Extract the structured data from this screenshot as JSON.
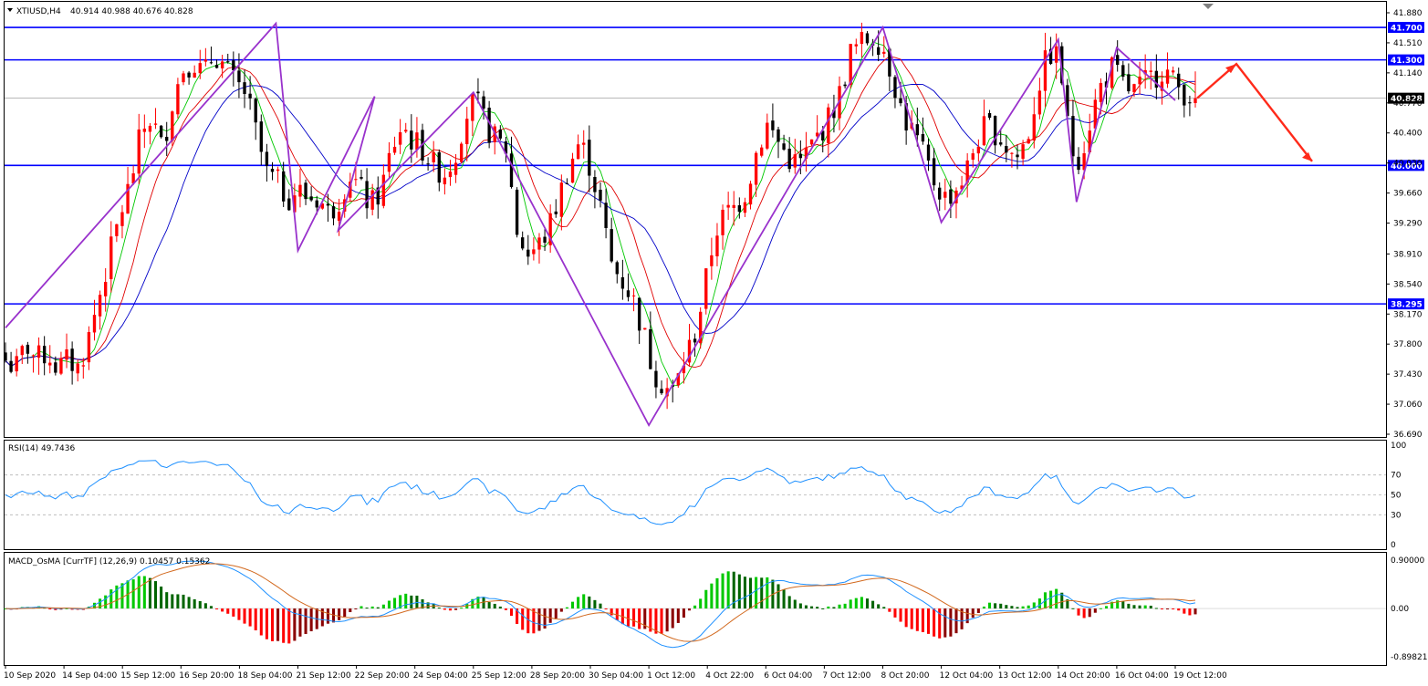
{
  "header": {
    "symbol": "XTIUSD,H4",
    "ohlc": "40.914 40.988 40.676 40.828",
    "rsi_title": "RSI(14) 49.7436",
    "macd_title": "MACD_OsMA [CurrTF] (12,26,9) 0.10457 0.15362"
  },
  "colors": {
    "bull": "#ff0000",
    "bear": "#000000",
    "ma_fast": "#00c800",
    "ma_mid": "#e00000",
    "ma_slow": "#0000c8",
    "zigzag": "#9932cc",
    "level": "#0000ff",
    "rsi": "#1e90ff",
    "macd_line": "#1e90ff",
    "signal_line": "#d2691e",
    "hist_up_strong": "#00c800",
    "hist_up_weak": "#006400",
    "hist_down_strong": "#ff0000",
    "hist_down_weak": "#8b0000",
    "arrow": "#ff2a1a"
  },
  "chart_data": [
    {
      "type": "candlestick",
      "symbol": "XTIUSD",
      "timeframe": "H4",
      "ylim": [
        36.69,
        41.88
      ],
      "y_ticks": [
        "41.880",
        "41.510",
        "41.140",
        "40.770",
        "40.400",
        "40.030",
        "39.660",
        "39.290",
        "38.910",
        "38.540",
        "38.170",
        "37.800",
        "37.430",
        "37.060",
        "36.690"
      ],
      "x_ticks": [
        "10 Sep 2020",
        "14 Sep 04:00",
        "15 Sep 12:00",
        "16 Sep 20:00",
        "18 Sep 04:00",
        "21 Sep 12:00",
        "22 Sep 20:00",
        "24 Sep 04:00",
        "25 Sep 12:00",
        "28 Sep 20:00",
        "30 Sep 04:00",
        "1 Oct 12:00",
        "4 Oct 22:00",
        "6 Oct 04:00",
        "7 Oct 12:00",
        "8 Oct 20:00",
        "12 Oct 04:00",
        "13 Oct 12:00",
        "14 Oct 20:00",
        "16 Oct 04:00",
        "19 Oct 12:00"
      ],
      "levels": [
        {
          "value": 41.7,
          "label": "41.700"
        },
        {
          "value": 41.3,
          "label": "41.300"
        },
        {
          "value": 40.0,
          "label": "40.000"
        },
        {
          "value": 38.295,
          "label": "38.295"
        }
      ],
      "current_price": {
        "value": 40.828,
        "label": "40.828"
      },
      "close_path": [
        37.6,
        37.5,
        37.8,
        37.6,
        37.7,
        37.5,
        37.6,
        37.5,
        37.9,
        38.4,
        38.9,
        39.4,
        39.8,
        40.4,
        40.6,
        40.2,
        40.8,
        41.2,
        41.3,
        41.1,
        41.4,
        41.2,
        41.0,
        40.9,
        40.4,
        39.9,
        39.8,
        39.6,
        39.7,
        39.6,
        39.6,
        39.4,
        39.6,
        39.9,
        39.7,
        39.5,
        39.7,
        40.2,
        40.5,
        40.3,
        40.2,
        40.0,
        39.9,
        40.1,
        40.6,
        40.8,
        40.5,
        40.3,
        40.2,
        39.2,
        38.9,
        39.0,
        39.2,
        39.6,
        40.0,
        40.3,
        40.0,
        39.5,
        38.8,
        38.6,
        38.4,
        38.0,
        37.5,
        37.3,
        37.2,
        37.6,
        37.9,
        38.5,
        39.2,
        39.4,
        39.5,
        39.7,
        40.2,
        40.5,
        40.3,
        40.1,
        40.0,
        40.2,
        40.4,
        40.6,
        40.9,
        41.4,
        41.5,
        41.6,
        41.5,
        41.1,
        40.6,
        40.4,
        40.1,
        39.8,
        39.6,
        39.7,
        39.9,
        40.3,
        40.5,
        40.4,
        40.2,
        40.1,
        40.4,
        41.0,
        41.4,
        41.3,
        40.2,
        40.1,
        40.6,
        41.0,
        41.2,
        41.0,
        40.9,
        41.0,
        41.1,
        41.2,
        41.0,
        40.9,
        40.83
      ],
      "zigzag": [
        {
          "x": "10 Sep 2020",
          "y": 38.0
        },
        {
          "x": "18 Sep 04:00",
          "y": 41.75
        },
        {
          "x": "21 Sep 12:00",
          "y": 38.95
        },
        {
          "x": "22 Sep 20:00",
          "y": 40.85
        },
        {
          "x": "22 Sep 20:00",
          "y": 39.2
        },
        {
          "x": "25 Sep 12:00",
          "y": 40.9
        },
        {
          "x": "1 Oct 12:00",
          "y": 36.8
        },
        {
          "x": "8 Oct 20:00",
          "y": 41.7
        },
        {
          "x": "12 Oct 04:00",
          "y": 39.3
        },
        {
          "x": "14 Oct 20:00",
          "y": 41.55
        },
        {
          "x": "14 Oct 20:00",
          "y": 39.55
        },
        {
          "x": "16 Oct 04:00",
          "y": 41.45
        },
        {
          "x": "19 Oct 12:00",
          "y": 40.8
        }
      ],
      "projection": [
        41.25,
        40.05
      ]
    },
    {
      "type": "line",
      "name": "RSI(14)",
      "value": 49.7436,
      "ylim": [
        0,
        100
      ],
      "y_ticks": [
        "100",
        "70",
        "50",
        "30",
        "0"
      ],
      "levels": [
        70,
        50,
        30
      ]
    },
    {
      "type": "bar",
      "name": "MACD_OsMA [CurrTF] (12,26,9)",
      "values": [
        0.10457,
        0.15362
      ],
      "ylim": [
        -0.89821,
        0.9
      ],
      "y_ticks": [
        "0.90000",
        "0.00",
        "-0.89821"
      ]
    }
  ]
}
